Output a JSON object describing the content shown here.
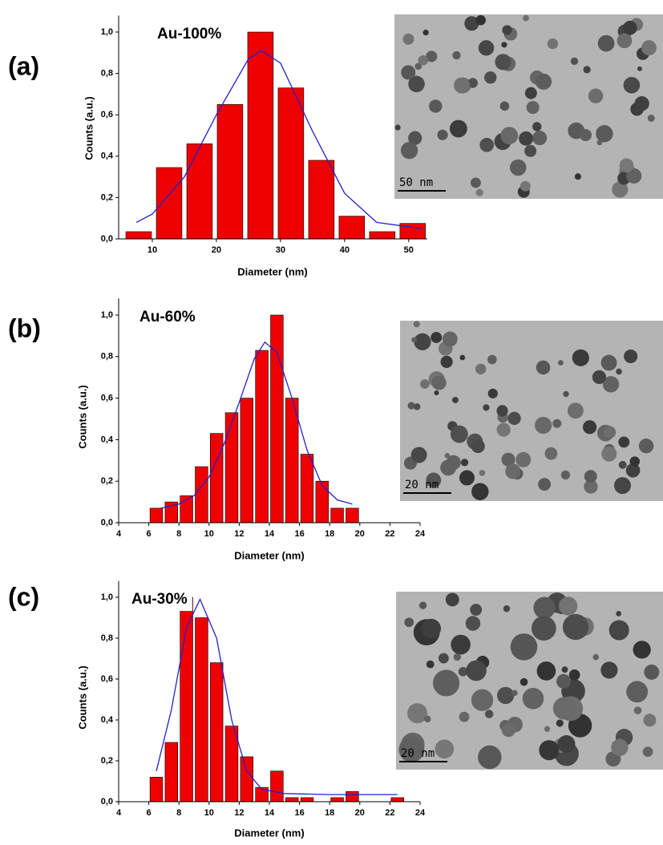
{
  "chart_data": [
    {
      "type": "histogram",
      "panel_label": "(a)",
      "annotation": "Au-100%",
      "xlabel": "Diameter (nm)",
      "ylabel": "Counts (a.u.)",
      "bins": [
        5.5,
        10.25,
        15,
        19.75,
        24.5,
        29.25,
        34,
        38.75,
        43.5,
        48.25,
        53
      ],
      "counts": [
        0.035,
        0.345,
        0.46,
        0.65,
        1.0,
        0.73,
        0.38,
        0.11,
        0.035,
        0.075
      ],
      "color": "#ee0000",
      "fit": {
        "x": [
          7.5,
          10,
          15,
          20,
          25,
          27,
          30,
          35,
          40,
          45,
          52
        ],
        "y": [
          0.08,
          0.12,
          0.3,
          0.6,
          0.87,
          0.91,
          0.85,
          0.52,
          0.22,
          0.08,
          0.05
        ],
        "color": "#2222cc"
      },
      "xlim": [
        4.75,
        52.9
      ],
      "ylim": [
        0,
        1.08
      ],
      "xticks": [
        10,
        20,
        30,
        40,
        50
      ],
      "yticks": [
        {
          "value": 0,
          "label": "0,0"
        },
        {
          "value": 0.2,
          "label": "0,2"
        },
        {
          "value": 0.4,
          "label": "0,4"
        },
        {
          "value": 0.6,
          "label": "0,6"
        },
        {
          "value": 0.8,
          "label": "0,8"
        },
        {
          "value": 1.0,
          "label": "1,0"
        }
      ],
      "scale_bar": "50 nm"
    },
    {
      "type": "histogram",
      "panel_label": "(b)",
      "annotation": "Au-60%",
      "xlabel": "Diameter (nm)",
      "ylabel": "Counts (a.u.)",
      "bins": [
        6,
        7,
        8,
        9,
        10,
        11,
        12,
        13,
        14,
        15,
        16,
        17,
        18,
        19,
        20
      ],
      "counts": [
        0.07,
        0.1,
        0.13,
        0.27,
        0.43,
        0.53,
        0.6,
        0.83,
        1.0,
        0.6,
        0.33,
        0.2,
        0.07,
        0.07
      ],
      "color": "#ee0000",
      "fit": {
        "x": [
          6.8,
          8,
          9,
          10,
          11,
          12,
          13,
          13.7,
          14.5,
          15.5,
          16.5,
          17.5,
          18.5,
          19.5
        ],
        "y": [
          0.07,
          0.09,
          0.13,
          0.22,
          0.38,
          0.58,
          0.79,
          0.87,
          0.82,
          0.6,
          0.35,
          0.18,
          0.11,
          0.09
        ],
        "color": "#2222cc"
      },
      "xlim": [
        4,
        24
      ],
      "ylim": [
        0,
        1.08
      ],
      "xticks": [
        4,
        6,
        8,
        10,
        12,
        14,
        16,
        18,
        20,
        22,
        24
      ],
      "yticks": [
        {
          "value": 0,
          "label": "0,0"
        },
        {
          "value": 0.2,
          "label": "0,2"
        },
        {
          "value": 0.4,
          "label": "0,4"
        },
        {
          "value": 0.6,
          "label": "0,6"
        },
        {
          "value": 0.8,
          "label": "0,8"
        },
        {
          "value": 1.0,
          "label": "1,0"
        }
      ],
      "scale_bar": "20 nm"
    },
    {
      "type": "histogram",
      "panel_label": "(c)",
      "annotation": "Au-30%",
      "xlabel": "Diameter (nm)",
      "ylabel": "Counts (a.u.)",
      "bins": [
        6,
        7,
        8,
        9,
        10,
        11,
        12,
        13,
        14,
        15,
        16,
        17,
        18,
        19,
        20,
        21,
        22,
        23
      ],
      "counts": [
        0.12,
        0.29,
        1.0,
        0.9,
        0.68,
        0.37,
        0.22,
        0.07,
        0.15,
        0.02,
        0.02,
        0,
        0.02,
        0.05,
        0,
        0,
        0.02
      ],
      "color": "#ee0000",
      "fit": {
        "x": [
          6.5,
          7.5,
          8.5,
          9.4,
          10.5,
          11.5,
          12.5,
          13.5,
          15,
          18,
          22.5
        ],
        "y": [
          0.15,
          0.45,
          0.85,
          0.99,
          0.8,
          0.4,
          0.15,
          0.06,
          0.04,
          0.035,
          0.035
        ],
        "color": "#2222cc"
      },
      "xlim": [
        4,
        24
      ],
      "ylim": [
        0,
        1.08
      ],
      "xticks": [
        4,
        6,
        8,
        10,
        12,
        14,
        16,
        18,
        20,
        22,
        24
      ],
      "yticks": [
        {
          "value": 0,
          "label": "0,0"
        },
        {
          "value": 0.2,
          "label": "0,2"
        },
        {
          "value": 0.4,
          "label": "0,4"
        },
        {
          "value": 0.6,
          "label": "0,6"
        },
        {
          "value": 0.8,
          "label": "0,8"
        },
        {
          "value": 1.0,
          "label": "1,0"
        }
      ],
      "scale_bar": "20 nm"
    }
  ]
}
